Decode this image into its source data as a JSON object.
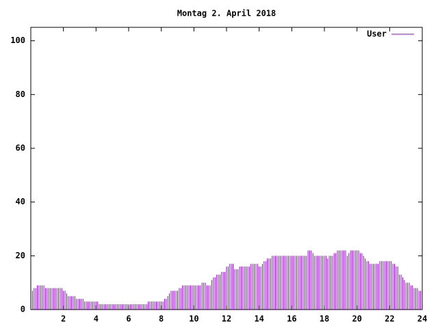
{
  "chart_data": {
    "type": "impulses",
    "title": "Montag 2. April 2018",
    "xlim": [
      0,
      24
    ],
    "ylim": [
      0,
      105
    ],
    "xticks": [
      2,
      4,
      6,
      8,
      10,
      12,
      14,
      16,
      18,
      20,
      22,
      24
    ],
    "yticks": [
      0,
      20,
      40,
      60,
      80,
      100
    ],
    "legend": "top-right",
    "x": [
      0,
      0.1,
      0.2,
      0.3,
      0.4,
      0.5,
      0.6,
      0.7,
      0.8,
      0.9,
      1,
      1.1,
      1.2,
      1.3,
      1.4,
      1.5,
      1.6,
      1.7,
      1.8,
      1.9,
      2,
      2.1,
      2.2,
      2.3,
      2.4,
      2.5,
      2.6,
      2.7,
      2.8,
      2.9,
      3,
      3.1,
      3.2,
      3.3,
      3.4,
      3.5,
      3.6,
      3.7,
      3.8,
      3.9,
      4,
      4.1,
      4.2,
      4.3,
      4.4,
      4.5,
      4.6,
      4.7,
      4.8,
      4.9,
      5,
      5.1,
      5.2,
      5.3,
      5.4,
      5.5,
      5.6,
      5.7,
      5.8,
      5.9,
      6,
      6.1,
      6.2,
      6.3,
      6.4,
      6.5,
      6.6,
      6.7,
      6.8,
      6.9,
      7,
      7.1,
      7.2,
      7.3,
      7.4,
      7.5,
      7.6,
      7.7,
      7.8,
      7.9,
      8,
      8.1,
      8.2,
      8.3,
      8.4,
      8.5,
      8.6,
      8.7,
      8.8,
      8.9,
      9,
      9.1,
      9.2,
      9.3,
      9.4,
      9.5,
      9.6,
      9.7,
      9.8,
      9.9,
      10,
      10.1,
      10.2,
      10.3,
      10.4,
      10.5,
      10.6,
      10.7,
      10.8,
      10.9,
      11,
      11.1,
      11.2,
      11.3,
      11.4,
      11.5,
      11.6,
      11.7,
      11.8,
      11.9,
      12,
      12.1,
      12.2,
      12.3,
      12.4,
      12.5,
      12.6,
      12.7,
      12.8,
      12.9,
      13,
      13.1,
      13.2,
      13.3,
      13.4,
      13.5,
      13.6,
      13.7,
      13.8,
      13.9,
      14,
      14.1,
      14.2,
      14.3,
      14.4,
      14.5,
      14.6,
      14.7,
      14.8,
      14.9,
      15,
      15.1,
      15.2,
      15.3,
      15.4,
      15.5,
      15.6,
      15.7,
      15.8,
      15.9,
      16,
      16.1,
      16.2,
      16.3,
      16.4,
      16.5,
      16.6,
      16.7,
      16.8,
      16.9,
      17,
      17.1,
      17.2,
      17.3,
      17.4,
      17.5,
      17.6,
      17.7,
      17.8,
      17.9,
      18,
      18.1,
      18.2,
      18.3,
      18.4,
      18.5,
      18.6,
      18.7,
      18.8,
      18.9,
      19,
      19.1,
      19.2,
      19.3,
      19.4,
      19.5,
      19.6,
      19.7,
      19.8,
      19.9,
      20,
      20.1,
      20.2,
      20.3,
      20.4,
      20.5,
      20.6,
      20.7,
      20.8,
      20.9,
      21,
      21.1,
      21.2,
      21.3,
      21.4,
      21.5,
      21.6,
      21.7,
      21.8,
      21.9,
      22,
      22.1,
      22.2,
      22.3,
      22.4,
      22.5,
      22.6,
      22.7,
      22.8,
      22.9,
      23,
      23.1,
      23.2,
      23.3,
      23.4,
      23.5,
      23.6,
      23.7,
      23.8,
      23.9
    ],
    "series": [
      {
        "name": "User",
        "color": "#9400d3",
        "values": [
          7,
          7,
          8,
          8,
          9,
          9,
          9,
          9,
          9,
          8,
          8,
          8,
          8,
          8,
          8,
          8,
          8,
          8,
          8,
          8,
          7,
          7,
          6,
          5,
          5,
          5,
          5,
          5,
          4,
          4,
          4,
          4,
          4,
          3,
          3,
          3,
          3,
          3,
          3,
          3,
          3,
          3,
          2,
          2,
          2,
          2,
          2,
          2,
          2,
          2,
          2,
          2,
          2,
          2,
          2,
          2,
          2,
          2,
          2,
          2,
          2,
          2,
          2,
          2,
          2,
          2,
          2,
          2,
          2,
          2,
          2,
          2,
          3,
          3,
          3,
          3,
          3,
          3,
          3,
          3,
          3,
          3,
          4,
          4,
          5,
          6,
          7,
          7,
          7,
          7,
          7,
          8,
          8,
          9,
          9,
          9,
          9,
          9,
          9,
          9,
          9,
          9,
          9,
          9,
          9,
          10,
          10,
          10,
          9,
          9,
          9,
          11,
          12,
          12,
          13,
          13,
          13,
          14,
          14,
          14,
          16,
          16,
          17,
          17,
          17,
          15,
          15,
          15,
          16,
          16,
          16,
          16,
          16,
          16,
          16,
          17,
          17,
          17,
          17,
          17,
          16,
          16,
          17,
          18,
          18,
          19,
          19,
          19,
          20,
          20,
          20,
          20,
          20,
          20,
          20,
          20,
          20,
          20,
          20,
          20,
          20,
          20,
          20,
          20,
          20,
          20,
          20,
          20,
          20,
          20,
          22,
          22,
          22,
          21,
          20,
          20,
          20,
          20,
          20,
          20,
          20,
          20,
          19,
          20,
          20,
          20,
          21,
          21,
          22,
          22,
          22,
          22,
          22,
          22,
          20,
          21,
          22,
          22,
          22,
          22,
          22,
          22,
          21,
          21,
          20,
          19,
          18,
          18,
          17,
          17,
          17,
          17,
          17,
          17,
          18,
          18,
          18,
          18,
          18,
          18,
          18,
          18,
          17,
          17,
          16,
          16,
          13,
          13,
          12,
          11,
          10,
          10,
          10,
          9,
          9,
          8,
          8,
          8,
          7,
          7
        ]
      }
    ]
  }
}
